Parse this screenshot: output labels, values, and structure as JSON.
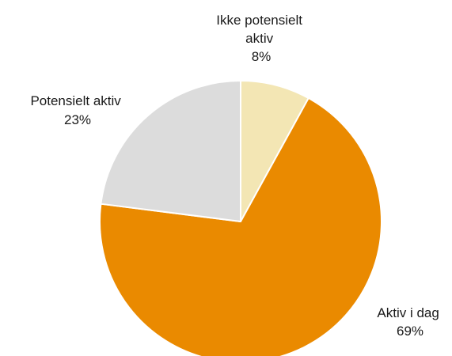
{
  "chart_data": {
    "type": "pie",
    "slices": [
      {
        "label": "Ikke potensielt aktiv",
        "label_lines": [
          "Ikke potensielt",
          "aktiv"
        ],
        "value": 8,
        "value_label": "8%",
        "color": "#f3e6b4"
      },
      {
        "label": "Aktiv i dag",
        "label_lines": [
          "Aktiv i dag"
        ],
        "value": 69,
        "value_label": "69%",
        "color": "#ea8a00"
      },
      {
        "label": "Potensielt aktiv",
        "label_lines": [
          "Potensielt aktiv"
        ],
        "value": 23,
        "value_label": "23%",
        "color": "#dcdcdc"
      }
    ],
    "start_angle_deg": 0,
    "direction": "clockwise",
    "legend": "none"
  }
}
